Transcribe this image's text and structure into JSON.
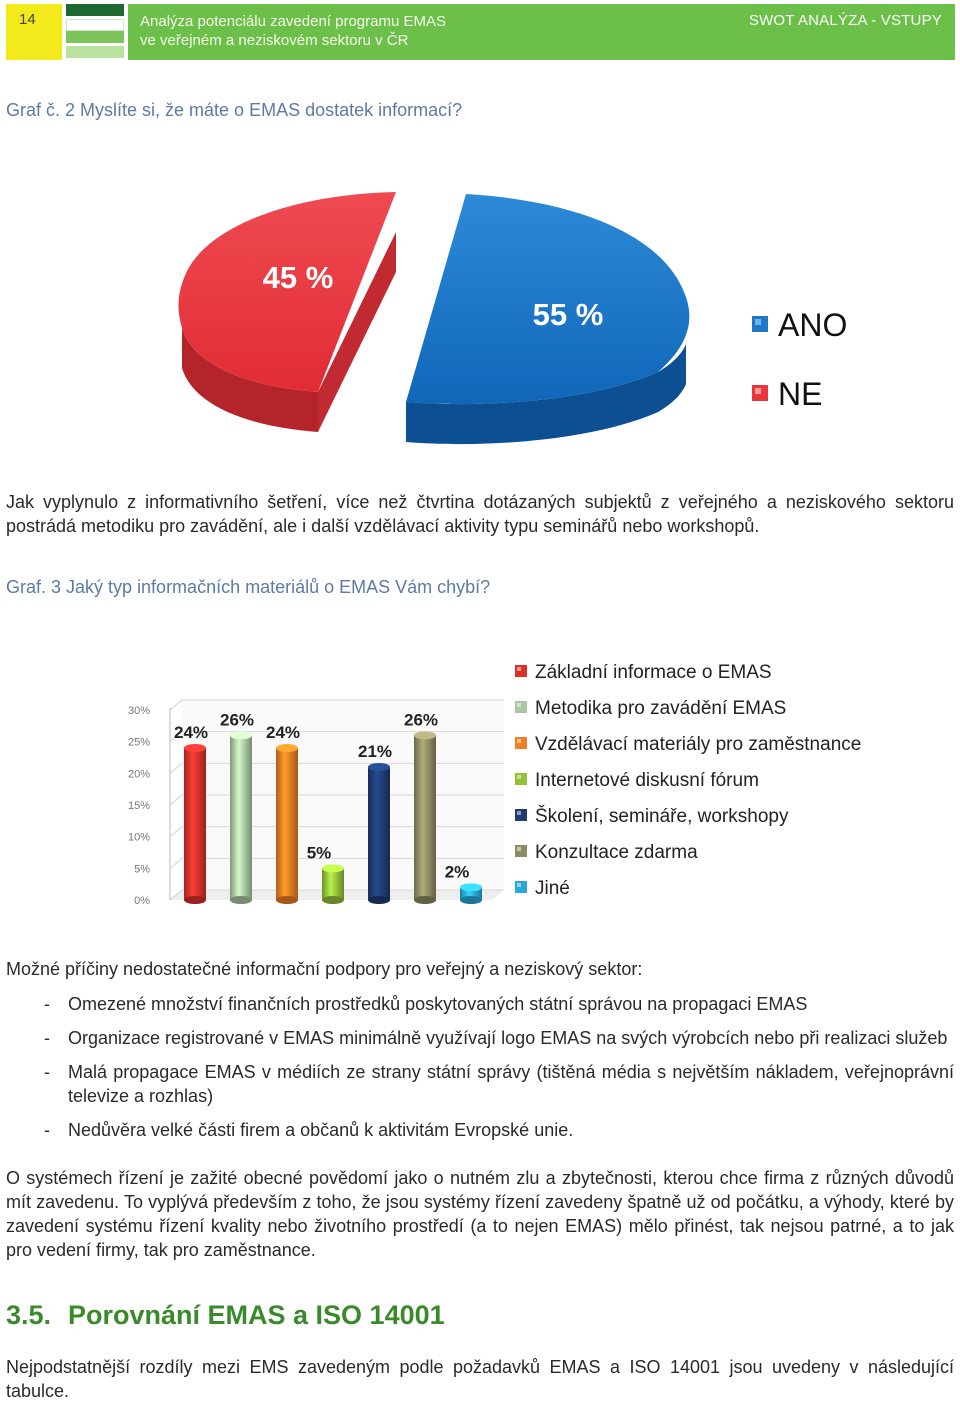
{
  "header": {
    "page_number": "14",
    "title_line1": "Analýza potenciálu zavedení programu EMAS",
    "title_line2": "ve veřejném a neziskovém  sektoru v ČR",
    "section": "SWOT ANALÝZA - VSTUPY"
  },
  "captions": {
    "graph2": "Graf č. 2 Myslíte si, že máte o EMAS dostatek informací?",
    "graph3": "Graf. 3 Jaký typ informačních materiálů o EMAS Vám chybí?"
  },
  "paragraphs": {
    "p1": "Jak vyplynulo z informativního šetření, více než čtvrtina dotázaných subjektů z veřejného a neziskového sektoru postrádá metodiku pro zavádění, ale i další vzdělávací aktivity typu seminářů nebo workshopů.",
    "p2": "Možné příčiny nedostatečné informační podpory pro veřejný a neziskový sektor:",
    "p3": "O systémech řízení je zažité obecné povědomí jako o nutném zlu a zbytečnosti, kterou chce firma z různých důvodů mít zavedenu. To vyplývá především z toho, že jsou systémy řízení zavedeny špatně už od počátku, a výhody, které by zavedení systému řízení kvality nebo životního prostředí (a to nejen EMAS) mělo přinést, tak nejsou patrné, a to jak pro vedení firmy, tak pro zaměstnance.",
    "p4": "Nejpodstatnější rozdíly mezi EMS zavedeným podle požadavků EMAS a ISO 14001 jsou uvedeny v následující tabulce."
  },
  "bullets": [
    "Omezené množství finančních prostředků poskytovaných státní správou na propagaci EMAS",
    "Organizace registrované v EMAS minimálně využívají logo EMAS na svých výrobcích nebo při realizaci služeb",
    "Malá propagace EMAS v médiích ze strany státní správy (tištěná média s největším nákladem, veřejnoprávní televize a rozhlas)",
    "Nedůvěra velké části firem a občanů k aktivitám Evropské unie."
  ],
  "bullet_marker": "-",
  "section": {
    "number": "3.5.",
    "title": "Porovnání EMAS a ISO 14001"
  },
  "chart_data": [
    {
      "type": "pie",
      "categories": [
        "ANO",
        "NE"
      ],
      "values": [
        55,
        45
      ],
      "labels": [
        "55 %",
        "45 %"
      ],
      "colors": [
        "#1f77c8",
        "#e8353e"
      ],
      "legend_position": "right"
    },
    {
      "type": "bar",
      "categories": [
        "Základní informace o EMAS",
        "Metodika pro zavádění EMAS",
        "Vzdělávací materiály pro zaměstnance",
        "Internetové diskusní fórum",
        "Školení, semináře, workshopy",
        "Konzultace zdarma",
        "Jiné"
      ],
      "values": [
        24,
        26,
        24,
        5,
        21,
        26,
        2
      ],
      "labels": [
        "24%",
        "26%",
        "24%",
        "5%",
        "21%",
        "26%",
        "2%"
      ],
      "colors": [
        "#d9302a",
        "#a9c7a0",
        "#ef7d22",
        "#93c13a",
        "#1f3b73",
        "#8e8a62",
        "#2aa8dc"
      ],
      "y_ticks": [
        "0%",
        "5%",
        "10%",
        "15%",
        "20%",
        "25%",
        "30%"
      ],
      "ylim": [
        0,
        30
      ],
      "grid": true,
      "legend_position": "right"
    }
  ]
}
